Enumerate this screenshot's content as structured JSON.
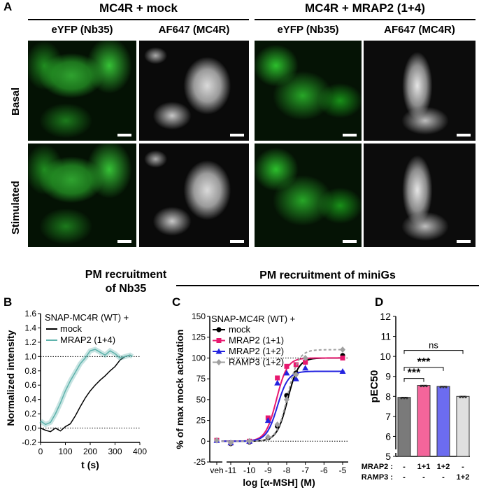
{
  "panel_labels": {
    "A": "A",
    "B": "B",
    "C": "C",
    "D": "D"
  },
  "panelA": {
    "group_titles": [
      "MC4R + mock",
      "MC4R + MRAP2 (1+4)"
    ],
    "column_titles": [
      "eYFP (Nb35)",
      "AF647 (MC4R)",
      "eYFP (Nb35)",
      "AF647 (MC4R)"
    ],
    "row_labels": [
      "Basal",
      "Stimulated"
    ]
  },
  "section_titles": {
    "B_line1": "PM recruitment",
    "B_line2": "of Nb35",
    "CD": "PM recruitment of miniGs"
  },
  "colors": {
    "mock": "#000000",
    "mrap2_14": "#5fb3ac",
    "mrap2_11": "#e8186f",
    "mrap2_12": "#2323e0",
    "ramp3": "#a0a0a0",
    "bar_mock": "#7a7a7a",
    "bar_11": "#f4659b",
    "bar_12": "#6c6cf0",
    "bar_ramp3": "#e0e0e0"
  },
  "chart_data": [
    {
      "type": "line",
      "panel": "B",
      "xlabel": "t (s)",
      "ylabel": "Normalized intensity",
      "xlim": [
        0,
        400
      ],
      "ylim": [
        -0.2,
        1.6
      ],
      "xticks": [
        "0",
        "100",
        "200",
        "300",
        "400"
      ],
      "yticks": [
        "-0.2",
        "0.0",
        "0.2",
        "0.4",
        "0.6",
        "0.8",
        "1.0",
        "1.2",
        "1.4",
        "1.6"
      ],
      "reference_lines": [
        0.0,
        1.0
      ],
      "legend_title": "SNAP-MC4R (WT) +",
      "series": [
        {
          "name": "mock",
          "x": [
            0,
            20,
            40,
            60,
            80,
            100,
            120,
            140,
            160,
            180,
            200,
            220,
            240,
            260,
            280,
            300,
            320,
            340,
            360,
            370
          ],
          "y": [
            0.0,
            -0.03,
            -0.05,
            0.0,
            -0.04,
            0.02,
            0.06,
            0.17,
            0.3,
            0.42,
            0.52,
            0.6,
            0.67,
            0.73,
            0.8,
            0.86,
            0.95,
            1.0,
            1.02,
            1.0
          ]
        },
        {
          "name": "MRAP2 (1+4)",
          "x": [
            0,
            20,
            40,
            60,
            80,
            100,
            120,
            140,
            160,
            180,
            200,
            220,
            240,
            260,
            280,
            300,
            320,
            340,
            360,
            370
          ],
          "y": [
            0.1,
            0.05,
            0.08,
            0.2,
            0.35,
            0.52,
            0.66,
            0.78,
            0.9,
            0.98,
            1.08,
            1.1,
            1.06,
            1.02,
            1.08,
            1.04,
            0.98,
            1.0,
            1.02,
            1.0
          ]
        }
      ]
    },
    {
      "type": "scatter",
      "panel": "C",
      "xlabel": "log [α-MSH] (M)",
      "ylabel": "% of max mock activation",
      "ylim": [
        -25,
        150
      ],
      "xticks": [
        "veh",
        "-11",
        "-10",
        "-9",
        "-8",
        "-7",
        "-6",
        "-5"
      ],
      "yticks": [
        "-25",
        "0",
        "25",
        "50",
        "75",
        "100",
        "125",
        "150"
      ],
      "reference_lines": [
        0,
        100
      ],
      "legend_title": "SNAP-MC4R (WT) +",
      "x": [
        -11,
        -10,
        -9,
        -8.5,
        -8,
        -7.5,
        -7,
        -5
      ],
      "series": [
        {
          "name": "mock",
          "veh": 1,
          "y": [
            -3,
            -1,
            4,
            18,
            55,
            82,
            95,
            103
          ],
          "top": 100,
          "logEC50": -7.95
        },
        {
          "name": "MRAP2 (1+1)",
          "veh": 1,
          "y": [
            -2,
            0,
            28,
            76,
            90,
            92,
            95,
            100
          ],
          "top": 100,
          "logEC50": -8.55
        },
        {
          "name": "MRAP2 (1+2)",
          "veh": 1,
          "y": [
            -2,
            0,
            25,
            70,
            82,
            75,
            88,
            84
          ],
          "top": 84,
          "logEC50": -8.5
        },
        {
          "name": "RAMP3 (1+2)",
          "veh": 1,
          "y": [
            -2,
            0,
            5,
            20,
            50,
            80,
            100,
            110
          ],
          "top": 110,
          "logEC50": -7.95
        }
      ]
    },
    {
      "type": "bar",
      "panel": "D",
      "ylabel": "pEC50",
      "ylim": [
        5,
        12
      ],
      "yticks": [
        "5",
        "6",
        "7",
        "8",
        "9",
        "10",
        "11",
        "12"
      ],
      "categories": [
        "mock",
        "MRAP2 1+1",
        "MRAP2 1+2",
        "RAMP3 1+2"
      ],
      "values": [
        7.95,
        8.55,
        8.5,
        8.0
      ],
      "errors": [
        0.05,
        0.05,
        0.05,
        0.05
      ],
      "row_titles": [
        "MRAP2 :",
        "RAMP3 :"
      ],
      "row_values": [
        [
          "-",
          "1+1",
          "1+2",
          "-"
        ],
        [
          "-",
          "-",
          "-",
          "1+2"
        ]
      ],
      "significance": [
        {
          "pair": [
            0,
            1
          ],
          "label": "***"
        },
        {
          "pair": [
            0,
            2
          ],
          "label": "***"
        },
        {
          "pair": [
            0,
            3
          ],
          "label": "ns"
        }
      ]
    }
  ]
}
